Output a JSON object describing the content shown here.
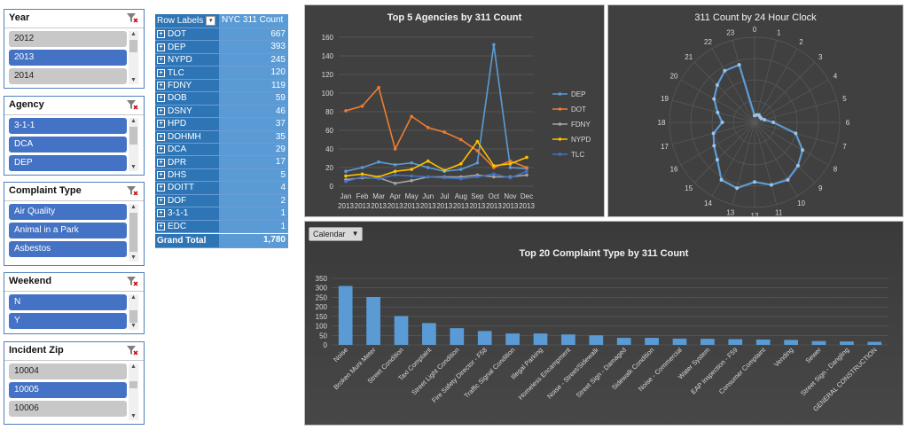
{
  "slicers": [
    {
      "key": "year",
      "title": "Year",
      "top": 10,
      "height": 90,
      "thumb": [
        10,
        14
      ],
      "items": [
        {
          "label": "2012",
          "selected": false
        },
        {
          "label": "2013",
          "selected": true
        },
        {
          "label": "2014",
          "selected": false
        }
      ]
    },
    {
      "key": "agency",
      "title": "Agency",
      "top": 108,
      "height": 90,
      "thumb": [
        10,
        20
      ],
      "items": [
        {
          "label": "3-1-1",
          "selected": true
        },
        {
          "label": "DCA",
          "selected": true
        },
        {
          "label": "DEP",
          "selected": true
        }
      ]
    },
    {
      "key": "complaint-type",
      "title": "Complaint Type",
      "top": 205,
      "height": 95,
      "thumb": [
        10,
        44
      ],
      "items": [
        {
          "label": "Air Quality",
          "selected": true
        },
        {
          "label": "Animal in a Park",
          "selected": true
        },
        {
          "label": "Asbestos",
          "selected": true
        }
      ]
    },
    {
      "key": "weekend",
      "title": "Weekend",
      "top": 307,
      "height": 70,
      "thumb": [
        18,
        14
      ],
      "items": [
        {
          "label": "N",
          "selected": true
        },
        {
          "label": "Y",
          "selected": true
        }
      ]
    },
    {
      "key": "incident-zip",
      "title": "Incident Zip",
      "top": 385,
      "height": 94,
      "thumb": [
        20,
        8
      ],
      "items": [
        {
          "label": "10004",
          "selected": false
        },
        {
          "label": "10005",
          "selected": true
        },
        {
          "label": "10006",
          "selected": false
        }
      ]
    }
  ],
  "pivot": {
    "header_label": "Row Labels",
    "header_value": "NYC 311 Count",
    "rows": [
      {
        "label": "DOT",
        "value": "667"
      },
      {
        "label": "DEP",
        "value": "393"
      },
      {
        "label": "NYPD",
        "value": "245"
      },
      {
        "label": "TLC",
        "value": "120"
      },
      {
        "label": "FDNY",
        "value": "119"
      },
      {
        "label": "DOB",
        "value": "59"
      },
      {
        "label": "DSNY",
        "value": "46"
      },
      {
        "label": "HPD",
        "value": "37"
      },
      {
        "label": "DOHMH",
        "value": "35"
      },
      {
        "label": "DCA",
        "value": "29"
      },
      {
        "label": "DPR",
        "value": "17"
      },
      {
        "label": "DHS",
        "value": "5"
      },
      {
        "label": "DOITT",
        "value": "4"
      },
      {
        "label": "DOF",
        "value": "2"
      },
      {
        "label": "3-1-1",
        "value": "1"
      },
      {
        "label": "EDC",
        "value": "1"
      }
    ],
    "total_label": "Grand Total",
    "total_value": "1,780"
  },
  "calendar_button": "Calendar",
  "colors": {
    "panel": "#404040",
    "accent": "#4472c4",
    "bar": "#5b9bd5"
  },
  "chart_data": [
    {
      "type": "line",
      "title": "Top 5 Agencies by 311 Count",
      "categories": [
        "Jan 2013",
        "Feb 2013",
        "Mar 2013",
        "Apr 2013",
        "May 2013",
        "Jun 2013",
        "Jul 2013",
        "Aug 2013",
        "Sep 2013",
        "Oct 2013",
        "Nov 2013",
        "Dec 2013"
      ],
      "ylim": [
        0,
        160
      ],
      "yticks": [
        0,
        20,
        40,
        60,
        80,
        100,
        120,
        140,
        160
      ],
      "grid": true,
      "legend": "right",
      "series": [
        {
          "name": "DEP",
          "color": "#5b9bd5",
          "values": [
            16,
            20,
            26,
            23,
            25,
            20,
            16,
            18,
            25,
            152,
            20,
            19
          ]
        },
        {
          "name": "DOT",
          "color": "#ed7d31",
          "values": [
            81,
            86,
            106,
            40,
            75,
            63,
            58,
            50,
            38,
            20,
            27,
            20
          ]
        },
        {
          "name": "FDNY",
          "color": "#a5a5a5",
          "values": [
            7,
            9,
            9,
            3,
            6,
            10,
            10,
            10,
            12,
            10,
            10,
            12
          ]
        },
        {
          "name": "NYPD",
          "color": "#ffc000",
          "values": [
            11,
            13,
            10,
            16,
            18,
            27,
            17,
            24,
            48,
            22,
            24,
            31
          ]
        },
        {
          "name": "TLC",
          "color": "#4472c4",
          "values": [
            5,
            10,
            8,
            12,
            11,
            10,
            9,
            8,
            10,
            13,
            9,
            16
          ]
        }
      ]
    },
    {
      "type": "radar",
      "title": "311 Count by 24 Hour Clock",
      "categories": [
        "0",
        "1",
        "2",
        "3",
        "4",
        "5",
        "6",
        "7",
        "8",
        "9",
        "10",
        "11",
        "12",
        "13",
        "14",
        "15",
        "16",
        "17",
        "18",
        "19",
        "20",
        "21",
        "22",
        "23"
      ],
      "rmax": 100,
      "values": [
        8,
        9,
        10,
        9,
        9,
        12,
        22,
        50,
        65,
        72,
        78,
        76,
        70,
        80,
        78,
        62,
        55,
        50,
        38,
        45,
        55,
        62,
        70,
        70
      ],
      "color": "#5b9bd5"
    },
    {
      "type": "bar",
      "title": "Top 20 Complaint Type by 311 Count",
      "ylim": [
        0,
        350
      ],
      "yticks": [
        0,
        50,
        100,
        150,
        200,
        250,
        300,
        350
      ],
      "grid": true,
      "categories": [
        "Noise",
        "Broken Muni Meter",
        "Street Condition",
        "Taxi Complaint",
        "Street Light Condition",
        "Fire Safety Director - F58",
        "Traffic Signal Condition",
        "Illegal Parking",
        "Homeless Encampment",
        "Noise - Street/Sidewalk",
        "Street Sign - Damaged",
        "Sidewalk Condition",
        "Noise - Commercial",
        "Water System",
        "EAP Inspection - F59",
        "Consumer Complaint",
        "Vending",
        "Sewer",
        "Street Sign - Dangling",
        "GENERAL CONSTRUCTION"
      ],
      "values": [
        310,
        252,
        152,
        115,
        88,
        73,
        60,
        60,
        55,
        50,
        37,
        37,
        33,
        32,
        30,
        28,
        26,
        20,
        18,
        16
      ]
    }
  ]
}
